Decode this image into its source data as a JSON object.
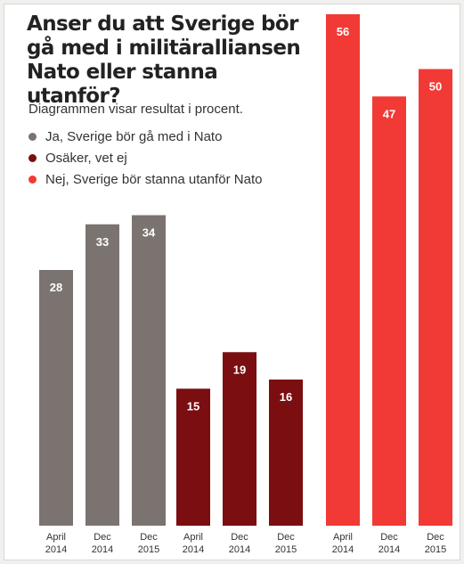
{
  "chart_data": {
    "type": "bar",
    "title": "Anser du att Sverige bör gå med i militäralliansen Nato eller stanna utanför?",
    "subtitle": "Diagrammen visar resultat i procent.",
    "ylim": [
      0,
      60
    ],
    "groups": [
      {
        "name": "Ja, Sverige bör gå med i Nato",
        "color": "#7b7370",
        "points": [
          {
            "x1": "April",
            "x2": "2014",
            "value": 28
          },
          {
            "x1": "Dec",
            "x2": "2014",
            "value": 33
          },
          {
            "x1": "Dec",
            "x2": "2015",
            "value": 34
          }
        ]
      },
      {
        "name": "Osäker, vet ej",
        "color": "#7a0e11",
        "points": [
          {
            "x1": "April",
            "x2": "2014",
            "value": 15
          },
          {
            "x1": "Dec",
            "x2": "2014",
            "value": 19
          },
          {
            "x1": "Dec",
            "x2": "2015",
            "value": 16
          }
        ]
      },
      {
        "name": "Nej, Sverige bör stanna utanför Nato",
        "color": "#f13a35",
        "points": [
          {
            "x1": "April",
            "x2": "2014",
            "value": 56
          },
          {
            "x1": "Dec",
            "x2": "2014",
            "value": 47
          },
          {
            "x1": "Dec",
            "x2": "2015",
            "value": 50
          }
        ]
      }
    ]
  }
}
